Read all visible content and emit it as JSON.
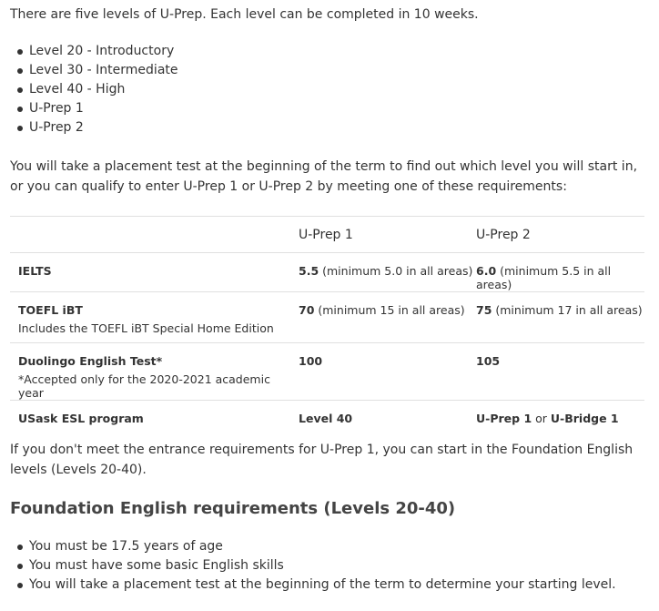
{
  "intro": "There are five levels of U-Prep. Each level can be completed in 10 weeks.",
  "levels": [
    "Level 20 - Introductory",
    "Level 30 - Intermediate",
    "Level 40 - High",
    "U-Prep 1",
    "U-Prep 2"
  ],
  "placement": "You will take a placement test at the beginning of the term to find out which level you will start in, or you can qualify to enter U-Prep 1 or U-Prep 2 by meeting one of these requirements:",
  "table": {
    "headers": [
      "",
      "U-Prep 1",
      "U-Prep 2"
    ],
    "rows": [
      {
        "label": "IELTS",
        "note": "",
        "c1b": "5.5",
        "c1": " (minimum 5.0 in all areas)",
        "c2b": "6.0",
        "c2": " (minimum 5.5 in all areas)"
      },
      {
        "label": "TOEFL iBT",
        "note": "Includes the TOEFL iBT Special Home Edition",
        "c1b": "70",
        "c1": " (minimum 15 in all areas)",
        "c2b": "75",
        "c2": " (minimum 17 in all areas)"
      },
      {
        "label": "Duolingo English Test*",
        "note": "*Accepted only for the 2020-2021 academic year",
        "c1b": "100",
        "c1": "",
        "c2b": "105",
        "c2": ""
      },
      {
        "label": "USask ESL program",
        "note": "",
        "c1b": "Level 40",
        "c1": "",
        "c2b": "U-Prep 1",
        "c2": " or ",
        "c2b2": "U-Bridge 1"
      }
    ]
  },
  "foundation_note": "If you don't meet the entrance requirements for U-Prep 1, you can start in the Foundation English levels (Levels 20-40).",
  "foundation_heading": "Foundation English requirements (Levels 20-40)",
  "foundation_items": [
    "You must be 17.5 years of age",
    "You must have some basic English skills",
    "You will take a placement test at the beginning of the term to determine your starting level."
  ]
}
